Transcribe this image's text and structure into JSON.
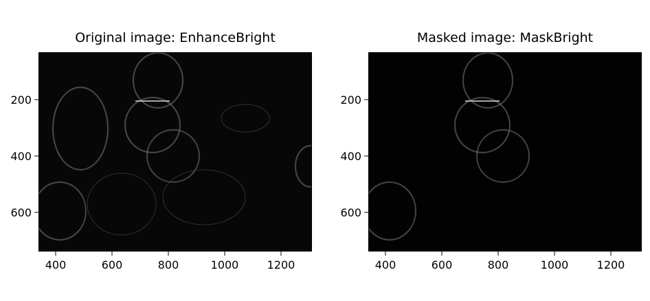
{
  "chart_data": [
    {
      "type": "image",
      "title": "Original image: EnhanceBright",
      "xlabel": "",
      "ylabel": "",
      "xlim": [
        340,
        1310
      ],
      "ylim": [
        740,
        40
      ],
      "xticks": [
        400,
        600,
        800,
        1000,
        1200
      ],
      "yticks": [
        200,
        400,
        600
      ],
      "grid": false,
      "colormap": "gray"
    },
    {
      "type": "image",
      "title": "Masked image: MaskBright",
      "xlabel": "",
      "ylabel": "",
      "xlim": [
        340,
        1310
      ],
      "ylim": [
        740,
        40
      ],
      "xticks": [
        400,
        600,
        800,
        1000,
        1200
      ],
      "yticks": [
        200,
        400,
        600
      ],
      "grid": false,
      "colormap": "gray"
    }
  ]
}
